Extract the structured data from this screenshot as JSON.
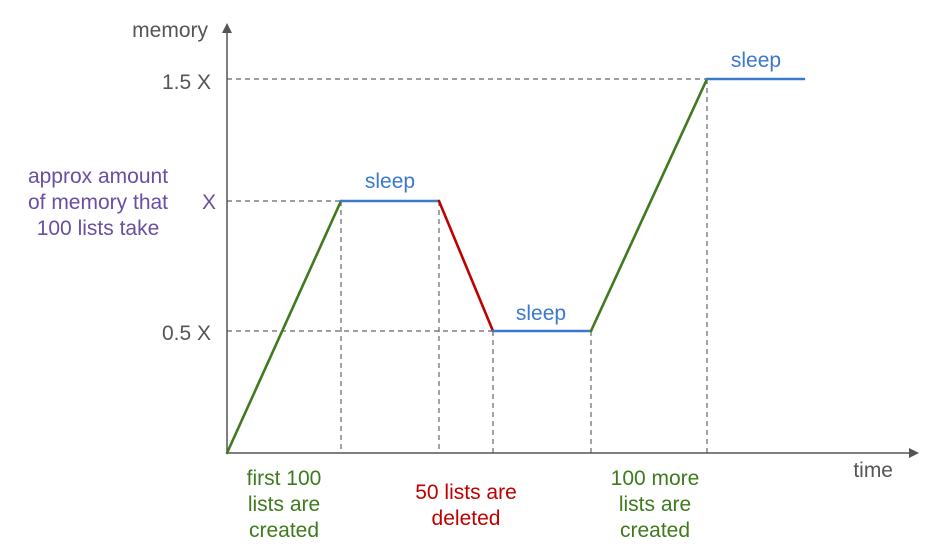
{
  "axes": {
    "y_title": "memory",
    "x_title": "time",
    "y_ticks": [
      "1.5 X",
      "X",
      "0.5 X"
    ]
  },
  "annotation": {
    "lines": [
      "approx amount",
      "of memory that",
      "100 lists take"
    ],
    "color": "#6a4ea1"
  },
  "sleep_labels": [
    "sleep",
    "sleep",
    "sleep"
  ],
  "phase_labels": [
    {
      "lines": [
        "first 100",
        "lists are",
        "created"
      ],
      "color": "#3f7a1e"
    },
    {
      "lines": [
        "50 lists are",
        "deleted"
      ],
      "color": "#c00000"
    },
    {
      "lines": [
        "100 more",
        "lists are",
        "created"
      ],
      "color": "#3f7a1e"
    }
  ],
  "colors": {
    "growth": "#3f7a1e",
    "decline": "#c00000",
    "sleep": "#3b78d0",
    "axis": "#555555",
    "guide": "#666666"
  }
}
